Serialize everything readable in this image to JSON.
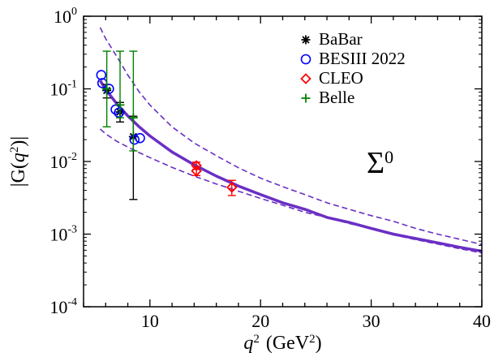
{
  "chart_data": {
    "type": "scatter",
    "scale": {
      "x": "linear",
      "y": "log10"
    },
    "title": "",
    "xlabel": {
      "base": "q",
      "sup": "2",
      "unit_pre": "(GeV",
      "unit_sup": "2",
      "unit_post": ")"
    },
    "ylabel": {
      "pre": "|G(",
      "base": "q",
      "sup": "2",
      "post": ")|"
    },
    "xlim": [
      4,
      40
    ],
    "ylim_exp": [
      -4,
      0
    ],
    "x_ticks": [
      10,
      20,
      30,
      40
    ],
    "x_tick_labels": [
      "10",
      "20",
      "30",
      "40"
    ],
    "y_ticks_exp": [
      0,
      -1,
      -2,
      -3,
      -4
    ],
    "y_tick_labels": [
      {
        "base": "10",
        "exp": "0"
      },
      {
        "base": "10",
        "exp": "-1"
      },
      {
        "base": "10",
        "exp": "-2"
      },
      {
        "base": "10",
        "exp": "-3"
      },
      {
        "base": "10",
        "exp": "-4"
      }
    ],
    "annotation": {
      "symbol": "Σ",
      "sup": "0"
    },
    "legend_position": "top-right",
    "series": [
      {
        "name": "BaBar",
        "marker": "asterisk",
        "color": "#000000",
        "points": [
          {
            "x": 6.1,
            "y": 0.095,
            "lo": 0.075,
            "hi": 0.115
          },
          {
            "x": 7.3,
            "y": 0.048,
            "lo": 0.035,
            "hi": 0.065
          },
          {
            "x": 8.5,
            "y": 0.022,
            "lo": 0.003,
            "hi": 0.042
          }
        ]
      },
      {
        "name": "BESIII 2022",
        "marker": "circle",
        "color": "#0000ff",
        "points": [
          {
            "x": 5.6,
            "y": 0.155
          },
          {
            "x": 5.7,
            "y": 0.12
          },
          {
            "x": 6.3,
            "y": 0.1
          },
          {
            "x": 6.9,
            "y": 0.052
          },
          {
            "x": 7.2,
            "y": 0.047
          },
          {
            "x": 8.6,
            "y": 0.02
          },
          {
            "x": 9.1,
            "y": 0.021
          }
        ]
      },
      {
        "name": "CLEO",
        "marker": "diamond",
        "color": "#ff0000",
        "points": [
          {
            "x": 14.2,
            "y": 0.0088,
            "lo": 0.0078,
            "hi": 0.0098
          },
          {
            "x": 14.2,
            "y": 0.0074,
            "lo": 0.0064,
            "hi": 0.0084
          },
          {
            "x": 17.4,
            "y": 0.0044,
            "lo": 0.0034,
            "hi": 0.0055
          }
        ]
      },
      {
        "name": "Belle",
        "marker": "plus",
        "color": "#008000",
        "points": [
          {
            "x": 6.1,
            "y": 0.1,
            "lo": 0.03,
            "hi": 0.33
          },
          {
            "x": 7.3,
            "y": 0.06,
            "lo": 0.04,
            "hi": 0.33
          },
          {
            "x": 8.5,
            "y": 0.04,
            "lo": 0.014,
            "hi": 0.33
          }
        ]
      }
    ],
    "curves": [
      {
        "name": "central",
        "style": "solid",
        "color": "#6a2fc4",
        "points": [
          [
            5.5,
            0.13
          ],
          [
            6,
            0.098
          ],
          [
            7,
            0.0625
          ],
          [
            8,
            0.0423
          ],
          [
            9,
            0.0303
          ],
          [
            10,
            0.0225
          ],
          [
            12,
            0.0135
          ],
          [
            14,
            0.009
          ],
          [
            16,
            0.0063
          ],
          [
            18,
            0.0046
          ],
          [
            20,
            0.0035
          ],
          [
            22,
            0.0027
          ],
          [
            24,
            0.0022
          ],
          [
            26,
            0.0017
          ],
          [
            28,
            0.00145
          ],
          [
            30,
            0.0012
          ],
          [
            32,
            0.001
          ],
          [
            34,
            0.00087
          ],
          [
            36,
            0.00076
          ],
          [
            38,
            0.00066
          ],
          [
            40,
            0.00058
          ]
        ]
      },
      {
        "name": "upper band",
        "style": "dashed",
        "color": "#6a2fc4",
        "points": [
          [
            5.5,
            0.7
          ],
          [
            6,
            0.49
          ],
          [
            7,
            0.28
          ],
          [
            8,
            0.155
          ],
          [
            9,
            0.092
          ],
          [
            10,
            0.06
          ],
          [
            12,
            0.03
          ],
          [
            14,
            0.018
          ],
          [
            16,
            0.012
          ],
          [
            18,
            0.0082
          ],
          [
            20,
            0.0059
          ],
          [
            22,
            0.0045
          ],
          [
            24,
            0.0035
          ],
          [
            26,
            0.0027
          ],
          [
            28,
            0.0022
          ],
          [
            30,
            0.0018
          ],
          [
            32,
            0.0015
          ],
          [
            34,
            0.0012
          ],
          [
            36,
            0.001
          ],
          [
            38,
            0.00085
          ],
          [
            40,
            0.00072
          ]
        ]
      },
      {
        "name": "lower band",
        "style": "dashed",
        "color": "#6a2fc4",
        "points": [
          [
            5.5,
            0.028
          ],
          [
            6,
            0.024
          ],
          [
            7,
            0.019
          ],
          [
            8,
            0.0158
          ],
          [
            9,
            0.0133
          ],
          [
            10,
            0.0113
          ],
          [
            12,
            0.0083
          ],
          [
            14,
            0.0063
          ],
          [
            16,
            0.0049
          ],
          [
            18,
            0.0039
          ],
          [
            20,
            0.0031
          ],
          [
            22,
            0.0025
          ],
          [
            24,
            0.002
          ],
          [
            26,
            0.0017
          ],
          [
            28,
            0.0014
          ],
          [
            30,
            0.0012
          ],
          [
            32,
            0.00098
          ],
          [
            34,
            0.00084
          ],
          [
            36,
            0.00073
          ],
          [
            38,
            0.00063
          ],
          [
            40,
            0.00055
          ]
        ]
      }
    ]
  }
}
